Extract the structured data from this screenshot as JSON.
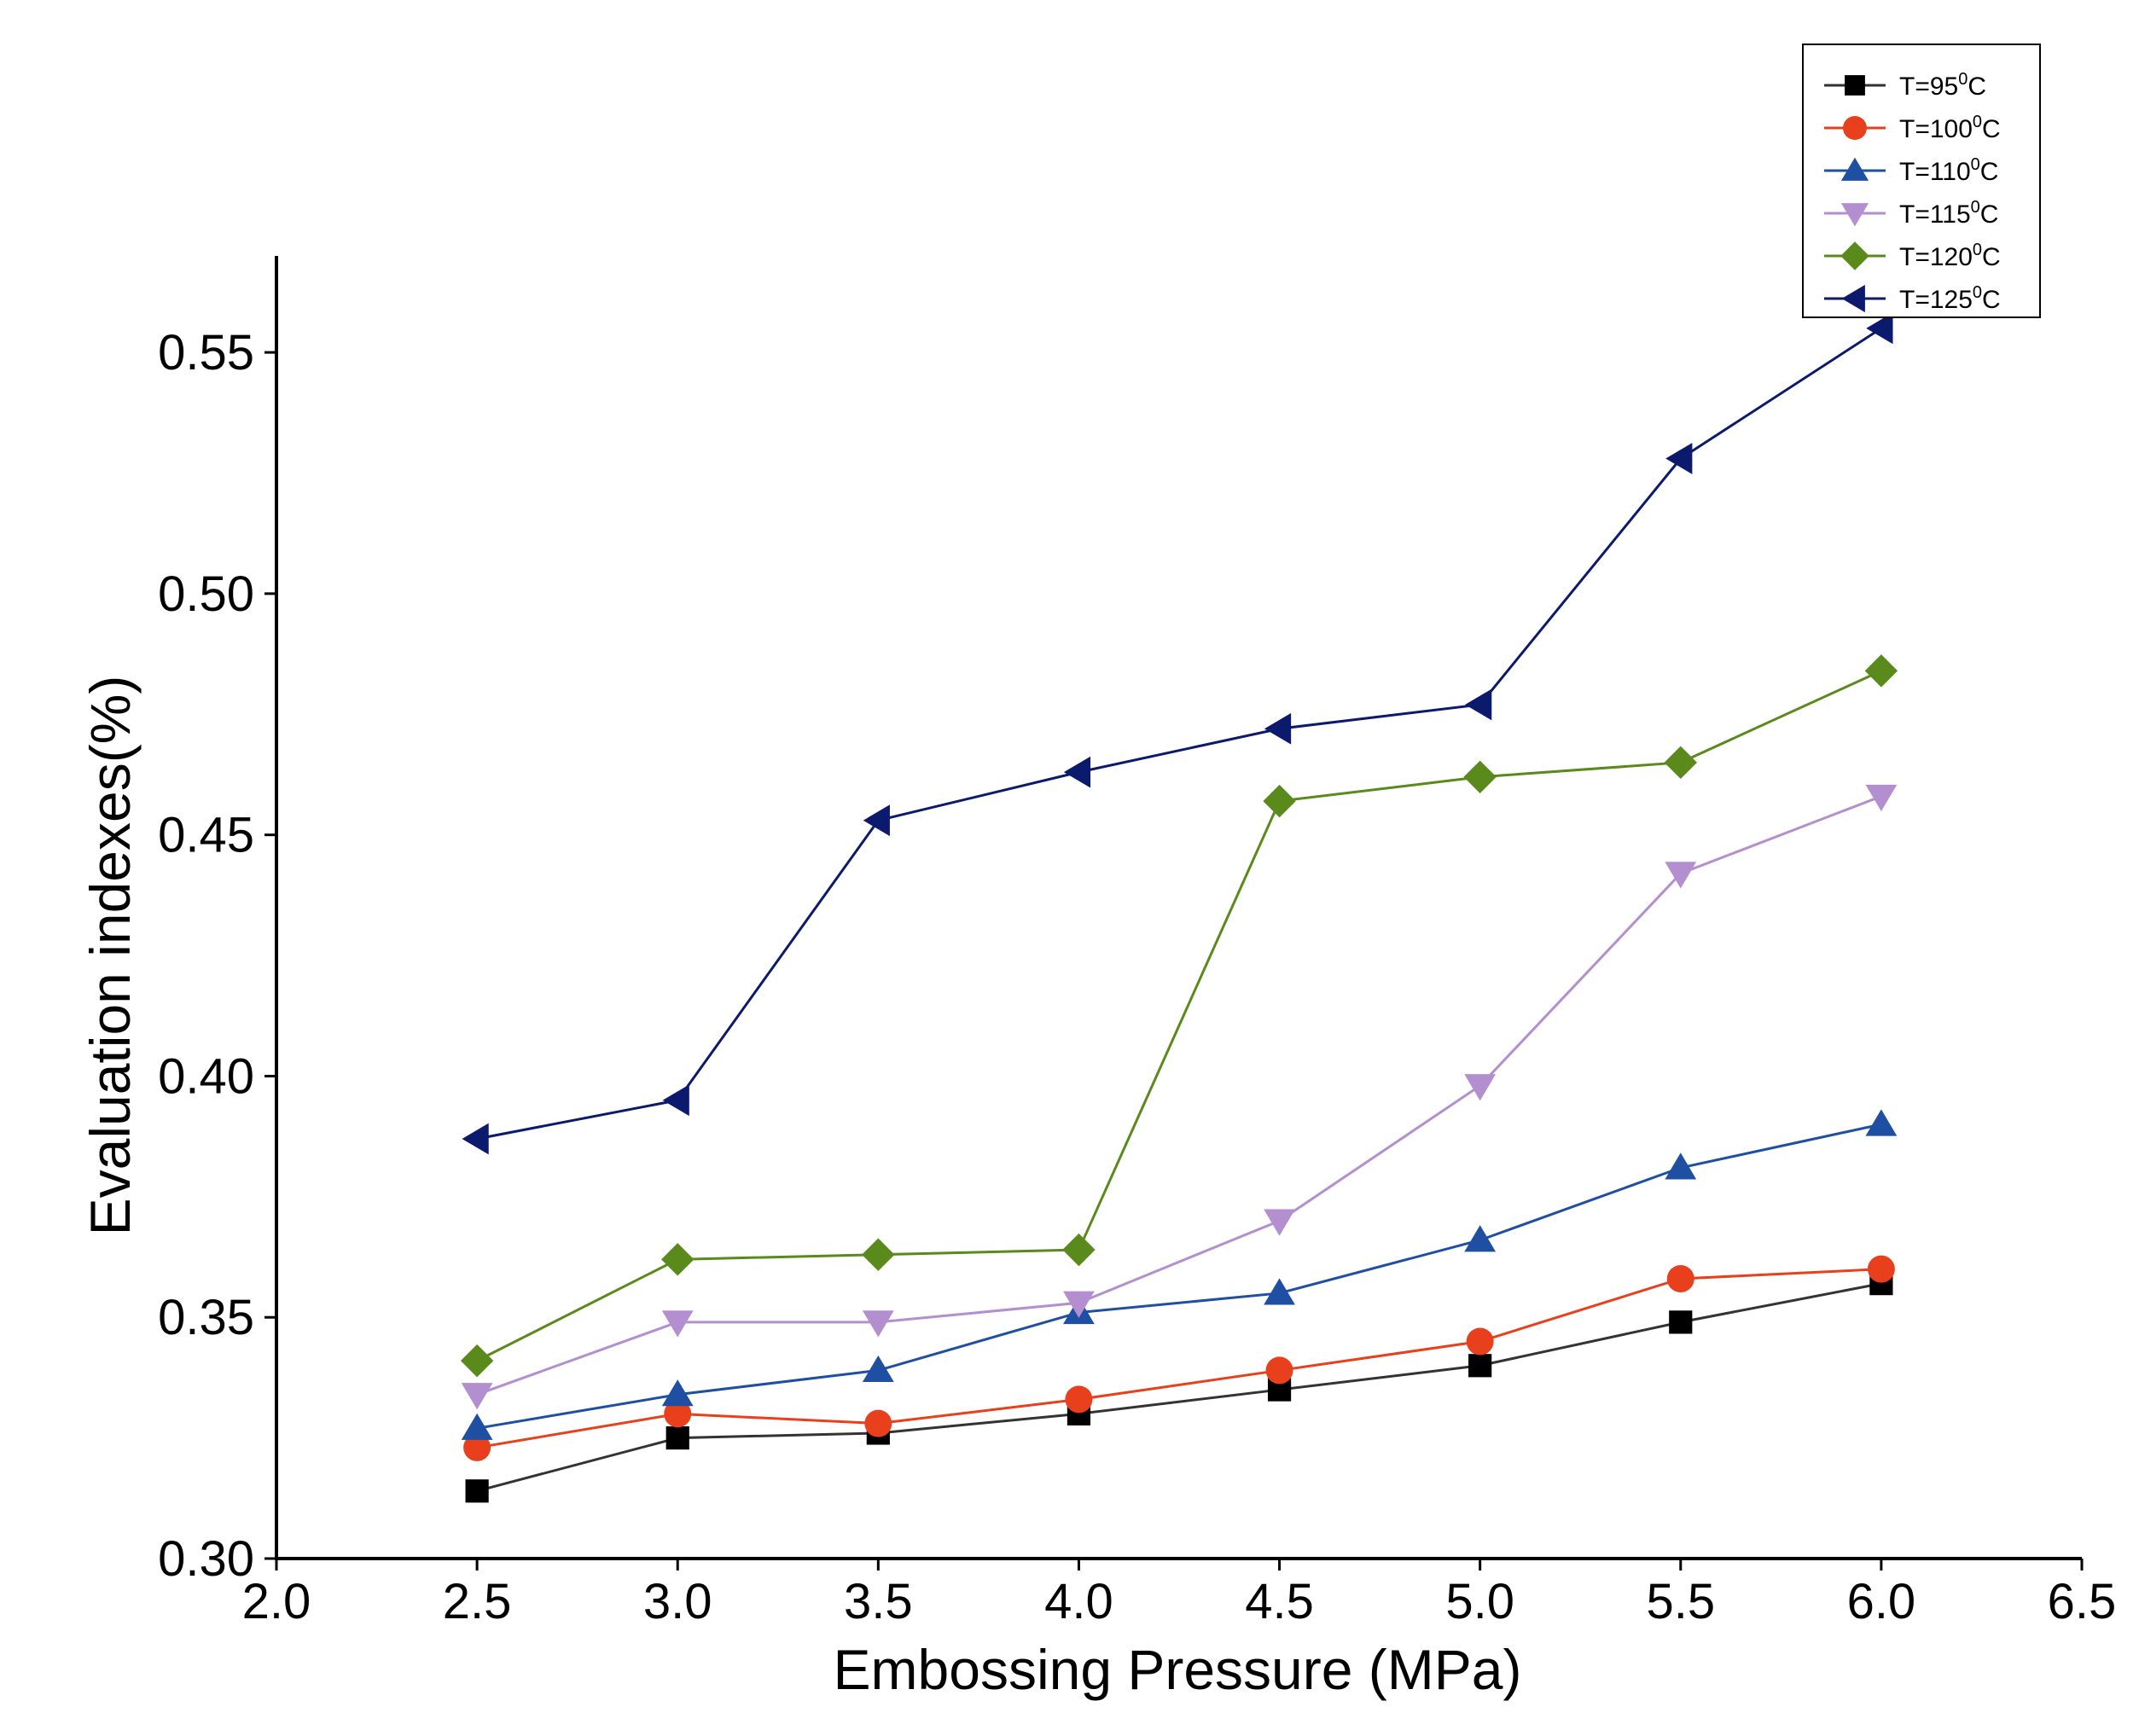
{
  "chart_data": {
    "type": "line",
    "title": "",
    "xlabel": "Embossing Pressure (MPa)",
    "ylabel": "Evaluation indexes(%)",
    "xlim": [
      2.0,
      6.5
    ],
    "ylim": [
      0.3,
      0.57
    ],
    "x_ticks": [
      "2.0",
      "2.5",
      "3.0",
      "3.5",
      "4.0",
      "4.5",
      "5.0",
      "5.5",
      "6.0",
      "6.5"
    ],
    "x_tick_values": [
      2.0,
      2.5,
      3.0,
      3.5,
      4.0,
      4.5,
      5.0,
      5.5,
      6.0,
      6.5
    ],
    "y_ticks": [
      "0.30",
      "0.35",
      "0.40",
      "0.45",
      "0.50",
      "0.55"
    ],
    "y_tick_values": [
      0.3,
      0.35,
      0.4,
      0.45,
      0.5,
      0.55
    ],
    "grid": false,
    "legend_position": "top-right",
    "x": [
      2.5,
      3.0,
      3.5,
      4.0,
      4.5,
      5.0,
      5.5,
      6.0
    ],
    "series": [
      {
        "name": "T=95°C",
        "label_main": "T=95",
        "label_sup": "0",
        "label_unit": "C",
        "color": "#000000",
        "line_color": "#333333",
        "marker": "square",
        "values": [
          0.314,
          0.325,
          0.326,
          0.33,
          0.335,
          0.34,
          0.349,
          0.357
        ]
      },
      {
        "name": "T=100°C",
        "label_main": "T=100",
        "label_sup": "0",
        "label_unit": "C",
        "color": "#e8401c",
        "line_color": "#e8401c",
        "marker": "circle",
        "values": [
          0.323,
          0.33,
          0.328,
          0.333,
          0.339,
          0.345,
          0.358,
          0.36
        ]
      },
      {
        "name": "T=110°C",
        "label_main": "T=110",
        "label_sup": "0",
        "label_unit": "C",
        "color": "#1f4fa3",
        "line_color": "#1f4fa3",
        "marker": "triangle-up",
        "values": [
          0.327,
          0.334,
          0.339,
          0.351,
          0.355,
          0.366,
          0.381,
          0.39
        ]
      },
      {
        "name": "T=115°C",
        "label_main": "T=115",
        "label_sup": "0",
        "label_unit": "C",
        "color": "#b48fcf",
        "line_color": "#b48fcf",
        "marker": "triangle-down",
        "values": [
          0.334,
          0.349,
          0.349,
          0.353,
          0.37,
          0.398,
          0.442,
          0.458
        ]
      },
      {
        "name": "T=120°C",
        "label_main": "T=120",
        "label_sup": "0",
        "label_unit": "C",
        "color": "#5a8a1c",
        "line_color": "#5a8a1c",
        "marker": "diamond",
        "values": [
          0.341,
          0.362,
          0.363,
          0.364,
          0.457,
          0.462,
          0.465,
          0.484
        ]
      },
      {
        "name": "T=125°C",
        "label_main": "T=125",
        "label_sup": "0",
        "label_unit": "C",
        "color": "#0c1a6e",
        "line_color": "#0c1a6e",
        "marker": "triangle-left",
        "values": [
          0.387,
          0.395,
          0.453,
          0.463,
          0.472,
          0.477,
          0.528,
          0.555
        ]
      }
    ]
  }
}
